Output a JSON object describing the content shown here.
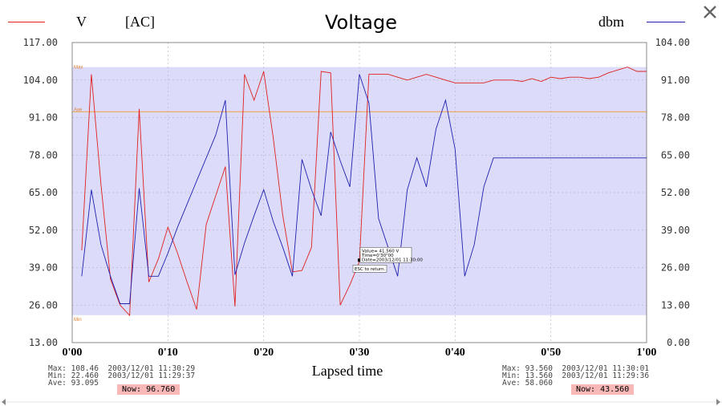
{
  "window": {
    "close_icon": "close-icon"
  },
  "legend": {
    "left_label": "V",
    "left_unit": "[AC]",
    "right_label": "dbm",
    "left_color": "#e02020",
    "right_color": "#2020b0"
  },
  "chart_data": {
    "type": "line",
    "title": "Voltage",
    "xlabel": "Lapsed time",
    "x_ticks": [
      "0'00",
      "0'10",
      "0'20",
      "0'30",
      "0'40",
      "0'50",
      "1'00"
    ],
    "xlim": [
      0,
      60
    ],
    "y_left": {
      "label": "V",
      "unit": "[AC]",
      "lim": [
        13,
        117
      ],
      "ticks": [
        "117.00",
        "104.00",
        "91.00",
        "78.00",
        "65.00",
        "52.00",
        "39.00",
        "26.00",
        "13.00"
      ]
    },
    "y_right": {
      "label": "dbm",
      "lim": [
        0,
        104
      ],
      "ticks": [
        "104.00",
        "91.00",
        "78.00",
        "65.00",
        "52.00",
        "39.00",
        "26.00",
        "13.00",
        "0.00"
      ]
    },
    "band": {
      "max": 108.5,
      "min": 22.5,
      "max_label": "Max",
      "min_label": "Min",
      "color": "#dcdcfa"
    },
    "average_line": {
      "value": 93.0,
      "label": "Ave",
      "color": "#f0a040"
    },
    "grid": true,
    "series": [
      {
        "name": "V",
        "axis": "left",
        "color": "#e02020",
        "x": [
          1,
          2,
          3,
          4,
          5,
          6,
          7,
          8,
          9,
          10,
          11,
          12,
          13,
          14,
          15,
          16,
          17,
          18,
          19,
          20,
          21,
          22,
          23,
          24,
          25,
          26,
          27,
          28,
          29,
          30,
          31,
          32,
          33,
          34,
          35,
          36,
          37,
          38,
          39,
          40,
          41,
          42,
          43,
          44,
          45,
          46,
          47,
          48,
          49,
          50,
          51,
          52,
          53,
          54,
          55,
          56,
          57,
          58,
          59,
          60
        ],
        "values": [
          45.0,
          106.0,
          68.0,
          35.0,
          26.0,
          22.4,
          94.0,
          34.0,
          42.0,
          53.0,
          44.0,
          34.0,
          24.5,
          54.0,
          64.0,
          74.0,
          25.5,
          106.0,
          97.0,
          107.0,
          84.0,
          57.0,
          37.5,
          38.0,
          46.0,
          107.0,
          106.5,
          26.0,
          33.0,
          41.0,
          106.0,
          106.0,
          106.0,
          105.0,
          104.0,
          105.0,
          106.0,
          105.0,
          104.0,
          103.0,
          103.0,
          103.0,
          103.0,
          104.0,
          104.0,
          104.0,
          103.5,
          104.5,
          103.5,
          105.0,
          104.5,
          105.0,
          105.0,
          104.5,
          105.0,
          106.5,
          107.5,
          108.5,
          107.0,
          107.0
        ]
      },
      {
        "name": "dbm",
        "axis": "right",
        "color": "#2020b0",
        "x": [
          1,
          2,
          3,
          4,
          5,
          6,
          7,
          8,
          9,
          10,
          11,
          12,
          13,
          14,
          15,
          16,
          17,
          18,
          19,
          20,
          21,
          22,
          23,
          24,
          25,
          26,
          27,
          28,
          29,
          30,
          31,
          32,
          33,
          34,
          35,
          36,
          37,
          38,
          39,
          40,
          41,
          42,
          43,
          44,
          45,
          46,
          60
        ],
        "values": [
          23.0,
          53.0,
          34.0,
          23.0,
          13.5,
          13.5,
          53.5,
          23.0,
          23.0,
          31.0,
          40.0,
          48.0,
          56.0,
          64.0,
          72.0,
          84.0,
          23.5,
          34.5,
          44.0,
          53.0,
          42.0,
          33.0,
          23.0,
          63.5,
          53.0,
          44.0,
          73.0,
          63.0,
          54.0,
          93.0,
          83.0,
          43.0,
          33.0,
          23.0,
          53.0,
          64.0,
          54.0,
          74.0,
          84.0,
          67.0,
          23.0,
          34.0,
          54.0,
          64.0,
          64.0,
          64.0,
          64.0
        ]
      }
    ],
    "tooltip": {
      "lines": [
        "Value= 41.560 V",
        "Time=0'30\"00",
        "Date=2003/12/01 11:30:00"
      ],
      "hint": "ESC to return.",
      "x": 30,
      "value": 41.56
    }
  },
  "stats_left": {
    "max_label": "Max:",
    "max_value": "108.46",
    "max_time": "2003/12/01 11:30:29",
    "min_label": "Min:",
    "min_value": "22.460",
    "min_time": "2003/12/01 11:29:37",
    "ave_label": "Ave:",
    "ave_value": "93.095",
    "now": "Now: 96.760"
  },
  "stats_right": {
    "max_label": "Max:",
    "max_value": "93.560",
    "max_time": "2003/12/01 11:30:01",
    "min_label": "Min:",
    "min_value": "13.560",
    "min_time": "2003/12/01 11:29:36",
    "ave_label": "Ave:",
    "ave_value": "58.060",
    "now": "Now: 43.560"
  }
}
